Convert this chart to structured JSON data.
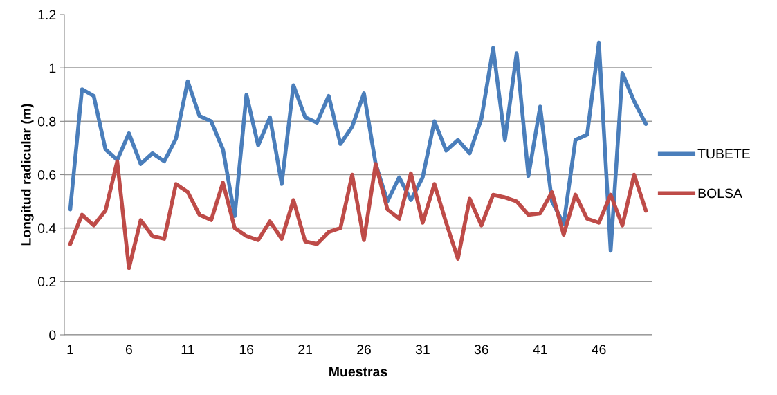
{
  "chart_data": {
    "type": "line",
    "xlabel": "Muestras",
    "ylabel": "Longitud radicular (m)",
    "categories": [
      "1",
      null,
      null,
      null,
      null,
      "6",
      null,
      null,
      null,
      null,
      "11",
      null,
      null,
      null,
      null,
      "16",
      null,
      null,
      null,
      null,
      "21",
      null,
      null,
      null,
      null,
      "26",
      null,
      null,
      null,
      null,
      "31",
      null,
      null,
      null,
      null,
      "36",
      null,
      null,
      null,
      null,
      "41",
      null,
      null,
      null,
      null,
      "46",
      null,
      null,
      null,
      null
    ],
    "series": [
      {
        "name": "TUBETE",
        "color": "#4a7ebb",
        "values": [
          0.47,
          0.92,
          0.895,
          0.695,
          0.655,
          0.755,
          0.64,
          0.68,
          0.65,
          0.735,
          0.95,
          0.82,
          0.8,
          0.695,
          0.445,
          0.9,
          0.71,
          0.815,
          0.565,
          0.935,
          0.815,
          0.795,
          0.895,
          0.715,
          0.78,
          0.905,
          0.64,
          0.5,
          0.59,
          0.505,
          0.59,
          0.8,
          0.69,
          0.73,
          0.68,
          0.81,
          1.075,
          0.73,
          1.055,
          0.595,
          0.855,
          0.5,
          0.415,
          0.73,
          0.75,
          1.095,
          0.315,
          0.98,
          0.875,
          0.79
        ]
      },
      {
        "name": "BOLSA",
        "color": "#be4b48",
        "values": [
          0.34,
          0.45,
          0.41,
          0.465,
          0.65,
          0.25,
          0.43,
          0.37,
          0.36,
          0.565,
          0.535,
          0.45,
          0.43,
          0.57,
          0.4,
          0.37,
          0.355,
          0.425,
          0.36,
          0.505,
          0.35,
          0.34,
          0.385,
          0.4,
          0.6,
          0.355,
          0.64,
          0.47,
          0.435,
          0.605,
          0.42,
          0.565,
          0.42,
          0.285,
          0.51,
          0.41,
          0.525,
          0.515,
          0.5,
          0.45,
          0.455,
          0.535,
          0.375,
          0.525,
          0.435,
          0.42,
          0.525,
          0.41,
          0.6,
          0.465
        ]
      }
    ],
    "ylim": [
      0,
      1.2
    ],
    "yticks": [
      0,
      0.2,
      0.4,
      0.6,
      0.8,
      {
        "value": 1,
        "label": "1"
      },
      1.2
    ],
    "grid": "y",
    "legend": "right",
    "marker": "none",
    "line_style": "solid"
  }
}
